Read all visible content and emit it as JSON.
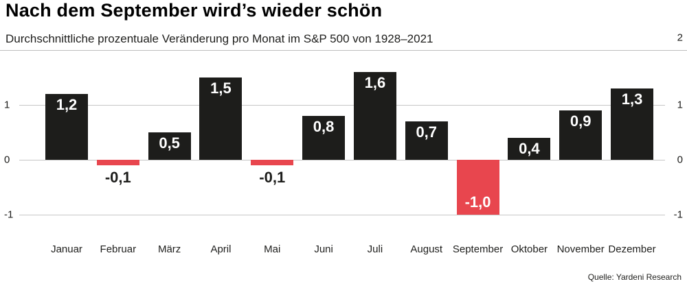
{
  "header": {
    "title": "Nach dem September wird’s wieder schön",
    "subtitle": "Durchschnittliche prozentuale Veränderung pro Monat im S&P 500 von 1928–2021"
  },
  "source": "Quelle: Yardeni Research",
  "chart_data": {
    "type": "bar",
    "title": "Nach dem September wird’s wieder schön",
    "subtitle": "Durchschnittliche prozentuale Veränderung pro Monat im S&P 500 von 1928–2021",
    "categories": [
      "Januar",
      "Februar",
      "März",
      "April",
      "Mai",
      "Juni",
      "Juli",
      "August",
      "September",
      "Oktober",
      "November",
      "Dezember"
    ],
    "values": [
      1.2,
      -0.1,
      0.5,
      1.5,
      -0.1,
      0.8,
      1.6,
      0.7,
      -1.0,
      0.4,
      0.9,
      1.3
    ],
    "value_labels": [
      "1,2",
      "-0,1",
      "0,5",
      "1,5",
      "-0,1",
      "0,8",
      "1,6",
      "0,7",
      "-1,0",
      "0,4",
      "0,9",
      "1,3"
    ],
    "ylim": [
      -1,
      2
    ],
    "yticks_left": [
      1,
      0,
      -1
    ],
    "yticks_right": [
      2,
      1,
      0,
      -1
    ],
    "grid": true,
    "legend": "none",
    "colors": {
      "positive": "#1d1d1b",
      "negative": "#e8464e",
      "value_label_inside": "#ffffff",
      "value_label_outside": "#1d1d1b"
    }
  }
}
